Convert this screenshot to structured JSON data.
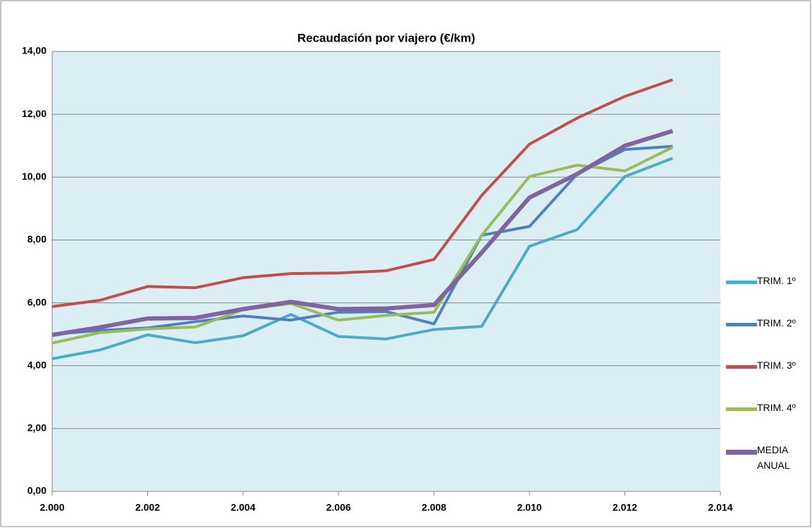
{
  "chart_data": {
    "type": "line",
    "title": "Recaudación por viajero (€/km)",
    "x": [
      2000,
      2001,
      2002,
      2003,
      2004,
      2005,
      2006,
      2007,
      2008,
      2009,
      2010,
      2011,
      2012,
      2013
    ],
    "series": [
      {
        "name": "TRIM. 1º",
        "color": "#4bacc6",
        "values": [
          4.22,
          4.5,
          4.98,
          4.73,
          4.95,
          5.63,
          4.93,
          4.85,
          5.15,
          5.25,
          7.8,
          8.33,
          10.02,
          10.6
        ]
      },
      {
        "name": "TRIM. 2º",
        "color": "#4f81bd",
        "values": [
          5.0,
          5.12,
          5.2,
          5.4,
          5.58,
          5.45,
          5.7,
          5.72,
          5.33,
          8.15,
          8.43,
          10.1,
          10.88,
          10.98
        ]
      },
      {
        "name": "TRIM. 3º",
        "color": "#c0504d",
        "values": [
          5.88,
          6.08,
          6.52,
          6.48,
          6.8,
          6.93,
          6.95,
          7.02,
          7.38,
          9.42,
          11.05,
          11.88,
          12.57,
          13.1
        ]
      },
      {
        "name": "TRIM. 4º",
        "color": "#9bbb59",
        "values": [
          4.72,
          5.05,
          5.17,
          5.23,
          5.78,
          5.98,
          5.45,
          5.6,
          5.7,
          8.15,
          10.02,
          10.38,
          10.2,
          10.95
        ]
      },
      {
        "name": "MEDIA ANUAL",
        "color": "#8064a2",
        "values": [
          4.98,
          5.22,
          5.5,
          5.52,
          5.8,
          6.03,
          5.8,
          5.82,
          5.93,
          7.6,
          9.35,
          10.1,
          11.0,
          11.47
        ]
      }
    ],
    "xlim": [
      2000,
      2014
    ],
    "xticks": [
      {
        "value": 2000,
        "label": "2.000"
      },
      {
        "value": 2002,
        "label": "2.002"
      },
      {
        "value": 2004,
        "label": "2.004"
      },
      {
        "value": 2006,
        "label": "2.006"
      },
      {
        "value": 2008,
        "label": "2.008"
      },
      {
        "value": 2010,
        "label": "2.010"
      },
      {
        "value": 2012,
        "label": "2.012"
      },
      {
        "value": 2014,
        "label": "2.014"
      }
    ],
    "ylim": [
      0,
      14
    ],
    "yticks": [
      {
        "value": 0,
        "label": "0,00"
      },
      {
        "value": 2,
        "label": "2,00"
      },
      {
        "value": 4,
        "label": "4,00"
      },
      {
        "value": 6,
        "label": "6,00"
      },
      {
        "value": 8,
        "label": "8,00"
      },
      {
        "value": 10,
        "label": "10,00"
      },
      {
        "value": 12,
        "label": "12,00"
      },
      {
        "value": 14,
        "label": "14,00"
      }
    ],
    "grid": true,
    "legend": "right"
  }
}
